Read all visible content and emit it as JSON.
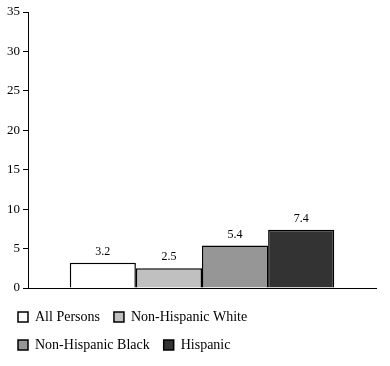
{
  "chart_data": {
    "type": "bar",
    "categories": [
      null
    ],
    "series": [
      {
        "name": "All Persons",
        "color": "#ffffff",
        "values": [
          3.2
        ]
      },
      {
        "name": "Non-Hispanic White",
        "color": "#c0c0c0",
        "values": [
          2.5
        ]
      },
      {
        "name": "Non-Hispanic Black",
        "color": "#969696",
        "values": [
          5.4
        ]
      },
      {
        "name": "Hispanic",
        "color": "#333333",
        "values": [
          7.4
        ]
      }
    ],
    "ylim": [
      0,
      35
    ],
    "yticks": [
      0,
      5,
      10,
      15,
      20,
      25,
      30,
      35
    ],
    "grid": false,
    "data_labels": true,
    "legend": "bottom",
    "tick_labels": "y"
  }
}
